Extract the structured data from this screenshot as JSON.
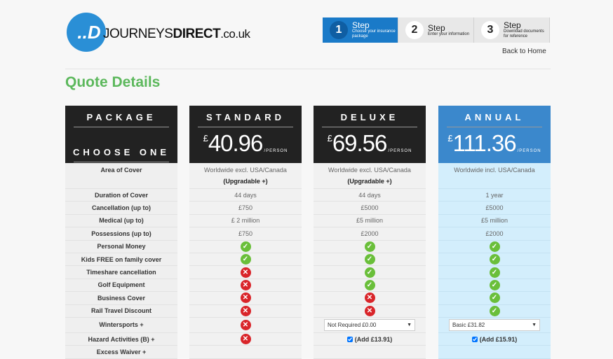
{
  "logo": {
    "mark": "..D",
    "text_j": "J",
    "text_1": "OURNEYS",
    "text_2": "DIRECT",
    "domain": ".co.uk"
  },
  "steps": [
    {
      "num": "1",
      "title": "Step",
      "sub": "Choose your insurance package",
      "active": true
    },
    {
      "num": "2",
      "title": "Step",
      "sub": "Enter your information",
      "active": false
    },
    {
      "num": "3",
      "title": "Step",
      "sub": "Download documents for reference",
      "active": false
    }
  ],
  "back_link": "Back to Home",
  "page_title": "Quote Details",
  "colors": {
    "accent_green": "#5cb85c",
    "annual_blue": "#3b88cc",
    "step_blue": "#1a7ac8"
  },
  "labels": {
    "header_top": "PACKAGE",
    "header_bottom": "CHOOSE ONE",
    "rows": [
      "Area of Cover",
      "Duration of Cover",
      "Cancellation (up to)",
      "Medical (up to)",
      "Possessions (up to)",
      "Personal Money",
      "Kids FREE on family cover",
      "Timeshare cancellation",
      "Golf Equipment",
      "Business Cover",
      "Rail Travel Discount",
      "Wintersports +",
      "Hazard Activities (B) +",
      "Excess Waiver +"
    ]
  },
  "packages": [
    {
      "name": "STANDARD",
      "currency": "£",
      "price": "40.96",
      "per": "/PERSON",
      "area": "Worldwide excl. USA/Canada",
      "upgrade": "(Upgradable +)",
      "duration": "44 days",
      "cancellation": "£750",
      "medical": "£ 2 million",
      "possessions": "£750",
      "features": [
        "yes",
        "yes",
        "no",
        "no",
        "no",
        "no"
      ],
      "wintersports": "no",
      "hazard": "no"
    },
    {
      "name": "DELUXE",
      "currency": "£",
      "price": "69.56",
      "per": "/PERSON",
      "area": "Worldwide excl. USA/Canada",
      "upgrade": "(Upgradable +)",
      "duration": "44 days",
      "cancellation": "£5000",
      "medical": "£5 million",
      "possessions": "£2000",
      "features": [
        "yes",
        "yes",
        "yes",
        "yes",
        "no",
        "no"
      ],
      "wintersports_select": "Not Required £0.00",
      "hazard_add": "(Add £13.91)"
    },
    {
      "name": "ANNUAL",
      "currency": "£",
      "price": "111.36",
      "per": "/PERSON",
      "area": "Worldwide incl. USA/Canada",
      "duration": "1 year",
      "cancellation": "£5000",
      "medical": "£5 million",
      "possessions": "£2000",
      "features": [
        "yes",
        "yes",
        "yes",
        "yes",
        "yes",
        "yes"
      ],
      "wintersports_select": "Basic £31.82",
      "hazard_add": "(Add £15.91)"
    }
  ]
}
